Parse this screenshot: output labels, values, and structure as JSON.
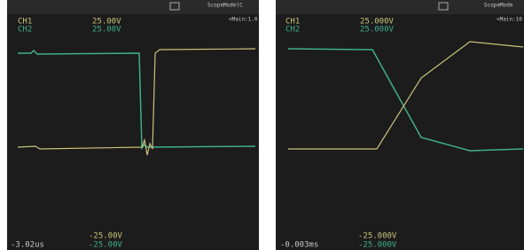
{
  "panels": [
    {
      "mode": "ScopeMode(C",
      "timebase": "<Main:1.0",
      "ch1_label": "CH1",
      "ch2_label": "CH2",
      "ch1_scale": "25.00V",
      "ch2_scale": "25.00V",
      "ch1_min": "-25.00V",
      "ch2_min": "-25.00V",
      "time": "-3.02us"
    },
    {
      "mode": "ScopeMode",
      "timebase": "<Main:10",
      "ch1_label": "CH1",
      "ch2_label": "CH2",
      "ch1_scale": "25.000V",
      "ch2_scale": "25.000V",
      "ch1_min": "-25.000V",
      "ch2_min": "-25.000V",
      "time": "-0.003ms"
    }
  ]
}
